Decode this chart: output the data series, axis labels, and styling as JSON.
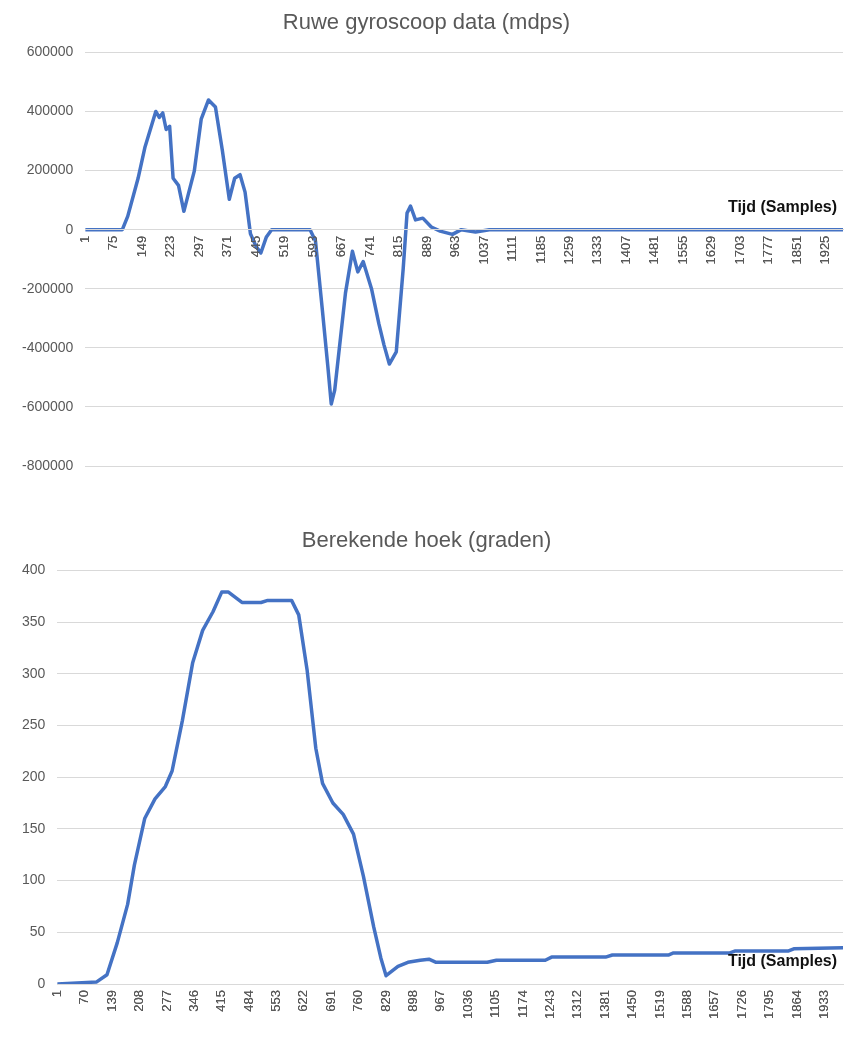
{
  "chart_data": [
    {
      "type": "line",
      "title": "Ruwe gyroscoop data (mdps)",
      "xlabel": "Tijd (Samples)",
      "grid": "y",
      "color": "#4472c4",
      "xlim": [
        1,
        1970
      ],
      "xticks": [
        1,
        75,
        149,
        223,
        297,
        371,
        445,
        519,
        593,
        667,
        741,
        815,
        889,
        963,
        1037,
        1111,
        1185,
        1259,
        1333,
        1407,
        1481,
        1555,
        1629,
        1703,
        1777,
        1851,
        1925
      ],
      "ylim": [
        -800000,
        600000
      ],
      "yticks": [
        -800000,
        -600000,
        -400000,
        -200000,
        0,
        200000,
        400000,
        600000
      ],
      "x": [
        1,
        97,
        111,
        138,
        156,
        184,
        193,
        202,
        211,
        220,
        229,
        243,
        257,
        284,
        302,
        321,
        339,
        357,
        375,
        389,
        403,
        416,
        430,
        444,
        457,
        471,
        485,
        585,
        599,
        617,
        631,
        640,
        649,
        658,
        677,
        695,
        709,
        723,
        745,
        764,
        777,
        791,
        809,
        827,
        837,
        846,
        859,
        878,
        900,
        923,
        955,
        978,
        1015,
        1051,
        1200,
        1400,
        1600,
        1800,
        1970
      ],
      "values": [
        0,
        0,
        45000,
        174000,
        280000,
        400000,
        380000,
        395000,
        339000,
        350000,
        174000,
        150000,
        62000,
        198000,
        374000,
        439000,
        415000,
        268000,
        103000,
        174000,
        186000,
        127000,
        -14000,
        -55000,
        -79000,
        -26000,
        0,
        0,
        -38000,
        -273000,
        -461000,
        -590000,
        -543000,
        -437000,
        -214000,
        -73000,
        -143000,
        -108000,
        -202000,
        -320000,
        -390000,
        -455000,
        -414000,
        -132000,
        56000,
        80000,
        33000,
        39000,
        9000,
        -5000,
        -16000,
        0,
        -8000,
        0,
        0,
        0,
        0,
        0,
        0
      ]
    },
    {
      "type": "line",
      "title": "Berekende hoek (graden)",
      "xlabel": "Tijd (Samples)",
      "grid": "y",
      "color": "#4472c4",
      "xlim": [
        1,
        1980
      ],
      "xticks": [
        1,
        70,
        139,
        208,
        277,
        346,
        415,
        484,
        553,
        622,
        691,
        760,
        829,
        898,
        967,
        1036,
        1105,
        1174,
        1243,
        1312,
        1381,
        1450,
        1519,
        1588,
        1657,
        1726,
        1795,
        1864,
        1933
      ],
      "ylim": [
        0,
        400
      ],
      "yticks": [
        0,
        50,
        100,
        150,
        200,
        250,
        300,
        350,
        400
      ],
      "x": [
        1,
        100,
        126,
        152,
        178,
        195,
        221,
        247,
        273,
        290,
        316,
        342,
        367,
        393,
        415,
        432,
        466,
        514,
        531,
        591,
        609,
        630,
        652,
        669,
        695,
        721,
        747,
        772,
        798,
        816,
        829,
        859,
        884,
        915,
        937,
        955,
        1084,
        1107,
        1230,
        1246,
        1382,
        1399,
        1540,
        1553,
        1695,
        1709,
        1843,
        1856,
        1980
      ],
      "values": [
        0,
        2,
        9,
        40,
        77,
        115,
        160,
        179,
        191,
        206,
        255,
        311,
        342,
        360,
        379,
        379,
        369,
        369,
        371,
        371,
        357,
        304,
        228,
        194,
        175,
        164,
        145,
        104,
        55,
        25,
        8,
        17,
        21,
        23,
        24,
        21,
        21,
        23,
        23,
        26,
        26,
        28,
        28,
        30,
        30,
        32,
        32,
        34,
        35
      ]
    }
  ]
}
